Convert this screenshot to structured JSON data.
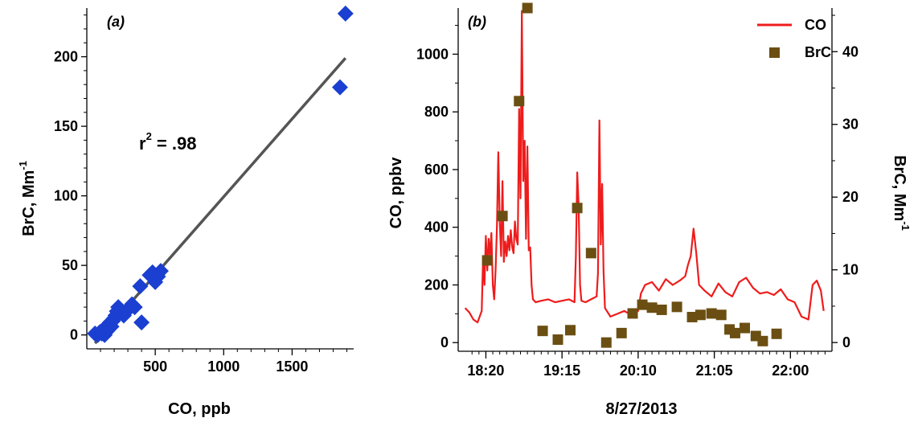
{
  "chart_data": [
    {
      "panel_label": "(a)",
      "type": "scatter",
      "xlabel": "CO, ppb",
      "ylabel": "BrC, Mm",
      "ylabel_sup": "-1",
      "xlim": [
        0,
        1950
      ],
      "ylim": [
        -10,
        235
      ],
      "xticks": [
        500,
        1000,
        1500
      ],
      "yticks": [
        0,
        50,
        100,
        150,
        200
      ],
      "grid": false,
      "colors": {
        "points": "#1a3fd1",
        "fit": "#555555"
      },
      "annotation": {
        "base": "r",
        "sup": "2",
        "value": " =  .98"
      },
      "points": [
        {
          "x": 60,
          "y": 1
        },
        {
          "x": 80,
          "y": 0
        },
        {
          "x": 95,
          "y": 2
        },
        {
          "x": 110,
          "y": 1
        },
        {
          "x": 120,
          "y": 4
        },
        {
          "x": 130,
          "y": 0
        },
        {
          "x": 140,
          "y": 2
        },
        {
          "x": 150,
          "y": 3
        },
        {
          "x": 160,
          "y": 5
        },
        {
          "x": 170,
          "y": 9
        },
        {
          "x": 180,
          "y": 6
        },
        {
          "x": 190,
          "y": 10
        },
        {
          "x": 200,
          "y": 12
        },
        {
          "x": 210,
          "y": 14
        },
        {
          "x": 220,
          "y": 17
        },
        {
          "x": 230,
          "y": 20
        },
        {
          "x": 250,
          "y": 16
        },
        {
          "x": 270,
          "y": 14
        },
        {
          "x": 300,
          "y": 18
        },
        {
          "x": 330,
          "y": 22
        },
        {
          "x": 350,
          "y": 20
        },
        {
          "x": 390,
          "y": 35
        },
        {
          "x": 400,
          "y": 9
        },
        {
          "x": 460,
          "y": 43
        },
        {
          "x": 480,
          "y": 45
        },
        {
          "x": 500,
          "y": 38
        },
        {
          "x": 520,
          "y": 42
        },
        {
          "x": 540,
          "y": 46
        },
        {
          "x": 1850,
          "y": 178
        },
        {
          "x": 1890,
          "y": 231
        }
      ],
      "fit_line": {
        "x": [
          60,
          1890
        ],
        "y": [
          -6,
          199
        ]
      }
    },
    {
      "panel_label": "(b)",
      "type": "line",
      "xlabel": "8/27/2013",
      "ylabel": "CO, ppbv",
      "y2label": "BrC, Mm",
      "y2label_sup": "-1",
      "x_unit": "hh:mm on 8/27/2013",
      "xlim": [
        "18:00",
        "22:30"
      ],
      "ylim": [
        -30,
        1160
      ],
      "y2lim": [
        -1.2,
        46
      ],
      "xticks": [
        "18:20",
        "19:15",
        "20:10",
        "21:05",
        "22:00"
      ],
      "yticks": [
        0,
        200,
        400,
        600,
        800,
        1000
      ],
      "y2ticks": [
        0,
        10,
        20,
        30,
        40
      ],
      "grid": false,
      "legend_position": "top-right",
      "series": [
        {
          "name": "CO",
          "kind": "line",
          "color": "#ee1c1c",
          "points": [
            [
              "18:05",
              120
            ],
            [
              "18:08",
              105
            ],
            [
              "18:11",
              80
            ],
            [
              "18:14",
              70
            ],
            [
              "18:17",
              110
            ],
            [
              "18:18",
              300
            ],
            [
              "18:19",
              200
            ],
            [
              "18:20",
              370
            ],
            [
              "18:21",
              250
            ],
            [
              "18:22",
              360
            ],
            [
              "18:23",
              300
            ],
            [
              "18:24",
              380
            ],
            [
              "18:25",
              200
            ],
            [
              "18:26",
              150
            ],
            [
              "18:27",
              250
            ],
            [
              "18:28",
              400
            ],
            [
              "18:29",
              660
            ],
            [
              "18:30",
              420
            ],
            [
              "18:31",
              300
            ],
            [
              "18:32",
              560
            ],
            [
              "18:33",
              280
            ],
            [
              "18:34",
              350
            ],
            [
              "18:35",
              300
            ],
            [
              "18:36",
              370
            ],
            [
              "18:37",
              320
            ],
            [
              "18:38",
              390
            ],
            [
              "18:39",
              330
            ],
            [
              "18:40",
              310
            ],
            [
              "18:41",
              420
            ],
            [
              "18:42",
              360
            ],
            [
              "18:43",
              340
            ],
            [
              "18:44",
              810
            ],
            [
              "18:45",
              500
            ],
            [
              "18:46",
              1150
            ],
            [
              "18:47",
              560
            ],
            [
              "18:48",
              700
            ],
            [
              "18:49",
              360
            ],
            [
              "18:50",
              680
            ],
            [
              "18:51",
              320
            ],
            [
              "18:52",
              330
            ],
            [
              "18:53",
              200
            ],
            [
              "18:54",
              150
            ],
            [
              "18:56",
              140
            ],
            [
              "19:00",
              145
            ],
            [
              "19:05",
              150
            ],
            [
              "19:10",
              140
            ],
            [
              "19:15",
              145
            ],
            [
              "19:20",
              150
            ],
            [
              "19:24",
              140
            ],
            [
              "19:25",
              300
            ],
            [
              "19:26",
              590
            ],
            [
              "19:27",
              480
            ],
            [
              "19:28",
              200
            ],
            [
              "19:29",
              145
            ],
            [
              "19:32",
              140
            ],
            [
              "19:36",
              150
            ],
            [
              "19:40",
              160
            ],
            [
              "19:41",
              240
            ],
            [
              "19:42",
              770
            ],
            [
              "19:43",
              340
            ],
            [
              "19:44",
              550
            ],
            [
              "19:45",
              250
            ],
            [
              "19:46",
              120
            ],
            [
              "19:50",
              90
            ],
            [
              "19:55",
              100
            ],
            [
              "20:00",
              110
            ],
            [
              "20:05",
              95
            ],
            [
              "20:10",
              110
            ],
            [
              "20:12",
              170
            ],
            [
              "20:15",
              200
            ],
            [
              "20:20",
              210
            ],
            [
              "20:25",
              180
            ],
            [
              "20:30",
              220
            ],
            [
              "20:35",
              200
            ],
            [
              "20:40",
              215
            ],
            [
              "20:44",
              230
            ],
            [
              "20:46",
              270
            ],
            [
              "20:48",
              300
            ],
            [
              "20:50",
              395
            ],
            [
              "20:52",
              310
            ],
            [
              "20:54",
              200
            ],
            [
              "20:58",
              180
            ],
            [
              "21:03",
              160
            ],
            [
              "21:08",
              205
            ],
            [
              "21:13",
              175
            ],
            [
              "21:18",
              160
            ],
            [
              "21:23",
              210
            ],
            [
              "21:28",
              225
            ],
            [
              "21:33",
              190
            ],
            [
              "21:38",
              170
            ],
            [
              "21:43",
              175
            ],
            [
              "21:48",
              165
            ],
            [
              "21:53",
              185
            ],
            [
              "21:58",
              150
            ],
            [
              "22:03",
              140
            ],
            [
              "22:08",
              90
            ],
            [
              "22:13",
              80
            ],
            [
              "22:16",
              200
            ],
            [
              "22:19",
              215
            ],
            [
              "22:22",
              180
            ],
            [
              "22:24",
              110
            ]
          ]
        },
        {
          "name": "BrC",
          "kind": "scatter",
          "axis": "right",
          "color": "#6b4f12",
          "points": [
            [
              "18:21",
              11.3
            ],
            [
              "18:32",
              17.4
            ],
            [
              "18:44",
              33.2
            ],
            [
              "18:50",
              46.0
            ],
            [
              "19:01",
              1.6
            ],
            [
              "19:12",
              0.4
            ],
            [
              "19:21",
              1.7
            ],
            [
              "19:26",
              18.5
            ],
            [
              "19:36",
              12.3
            ],
            [
              "19:47",
              0.0
            ],
            [
              "19:58",
              1.3
            ],
            [
              "20:06",
              4.0
            ],
            [
              "20:13",
              5.2
            ],
            [
              "20:20",
              4.8
            ],
            [
              "20:27",
              4.5
            ],
            [
              "20:38",
              4.9
            ],
            [
              "20:49",
              3.5
            ],
            [
              "20:55",
              3.8
            ],
            [
              "21:03",
              4.0
            ],
            [
              "21:10",
              3.8
            ],
            [
              "21:16",
              1.8
            ],
            [
              "21:20",
              1.3
            ],
            [
              "21:27",
              2.0
            ],
            [
              "21:35",
              0.9
            ],
            [
              "21:40",
              0.2
            ],
            [
              "21:50",
              1.2
            ]
          ]
        }
      ]
    }
  ]
}
